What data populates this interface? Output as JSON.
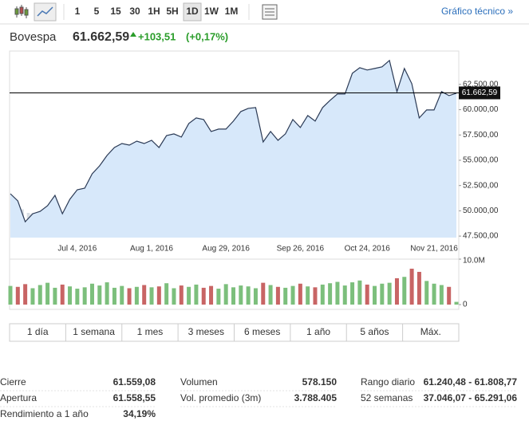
{
  "toolbar": {
    "intervals": [
      "1",
      "5",
      "15",
      "30",
      "1H",
      "5H",
      "1D",
      "1W",
      "1M"
    ],
    "link": "Gráfico técnico »"
  },
  "header": {
    "name": "Bovespa",
    "price": "61.662,59",
    "change": "+103,51",
    "change_pct": "(+0,17%)"
  },
  "chart_data": {
    "type": "area",
    "watermark": "Investing.com",
    "line_color": "#2b3a55",
    "fill_color": "#d7e8fa",
    "categories": [
      null,
      null,
      null,
      null,
      null,
      null,
      null,
      null,
      null,
      "Jul 4, 2016",
      null,
      null,
      null,
      null,
      null,
      null,
      null,
      null,
      null,
      "Aug 1, 2016",
      null,
      null,
      null,
      null,
      null,
      null,
      null,
      null,
      null,
      "Aug 29, 2016",
      null,
      null,
      null,
      null,
      null,
      null,
      null,
      null,
      null,
      "Sep 26, 2016",
      null,
      null,
      null,
      null,
      null,
      null,
      null,
      null,
      "Oct 24, 2016",
      null,
      null,
      null,
      null,
      null,
      null,
      null,
      null,
      "Nov 21, 2016",
      null,
      null,
      null
    ],
    "values": [
      51684,
      50973,
      48921,
      49710,
      49947,
      50500,
      51526,
      49710,
      51131,
      52079,
      52236,
      53657,
      54447,
      55473,
      56262,
      56657,
      56500,
      56894,
      56657,
      56973,
      56262,
      57446,
      57604,
      57289,
      58631,
      59183,
      59025,
      57841,
      58078,
      58078,
      58867,
      59815,
      60130,
      60209,
      56815,
      57841,
      56973,
      57604,
      59025,
      58236,
      59420,
      58867,
      60209,
      60920,
      61551,
      61551,
      63604,
      64156,
      63920,
      64077,
      64235,
      64867,
      61788,
      64077,
      62578,
      59183,
      59973,
      59973,
      61788,
      61393,
      61630
    ],
    "ylim": [
      47350,
      65800
    ],
    "yticks": [
      {
        "value": 47500,
        "label": "47.500,00"
      },
      {
        "value": 50000,
        "label": "50.000,00"
      },
      {
        "value": 52500,
        "label": "52.500,00"
      },
      {
        "value": 55000,
        "label": "55.000,00"
      },
      {
        "value": 57500,
        "label": "57.500,00"
      },
      {
        "value": 60000,
        "label": "60.000,00"
      },
      {
        "value": 62500,
        "label": "62.500,00"
      }
    ],
    "price_line": {
      "value": 61662.59,
      "label": "61.662,59"
    },
    "volume": {
      "up_color": "#7cbf7c",
      "down_color": "#c86464",
      "values": [
        4100000,
        3900000,
        4500000,
        3600000,
        4300000,
        4800000,
        3700000,
        4400000,
        4000000,
        3500000,
        3800000,
        4600000,
        4200000,
        4900000,
        3700000,
        4100000,
        3600000,
        3900000,
        4300000,
        3800000,
        4000000,
        4700000,
        3600000,
        4200000,
        3900000,
        4400000,
        3700000,
        4100000,
        3500000,
        4500000,
        3800000,
        4200000,
        4000000,
        3600000,
        4800000,
        4300000,
        3900000,
        3700000,
        4100000,
        4600000,
        4000000,
        3800000,
        4400000,
        4700000,
        5000000,
        4200000,
        4900000,
        5300000,
        4400000,
        4100000,
        4600000,
        4800000,
        5800000,
        6100000,
        7900000,
        7200000,
        5200000,
        4600000,
        4300000,
        3900000,
        600000
      ],
      "ylim": [
        0,
        10000000
      ],
      "yticks": [
        0,
        {
          "value": 10000000,
          "label": "10.0M"
        }
      ]
    }
  },
  "periods": [
    "1 día",
    "1 semana",
    "1 mes",
    "3 meses",
    "6 meses",
    "1 año",
    "5 años",
    "Máx."
  ],
  "stats": [
    [
      [
        "Cierre",
        "61.559,08"
      ],
      [
        "Apertura",
        "61.558,55"
      ],
      [
        "Rendimiento a 1 año",
        "34,19%"
      ]
    ],
    [
      [
        "Volumen",
        "578.150"
      ],
      [
        "Vol. promedio (3m)",
        "3.788.405"
      ]
    ],
    [
      [
        "Rango diario",
        "61.240,48 - 61.808,77"
      ],
      [
        "52 semanas",
        "37.046,07 - 65.291,06"
      ]
    ]
  ]
}
